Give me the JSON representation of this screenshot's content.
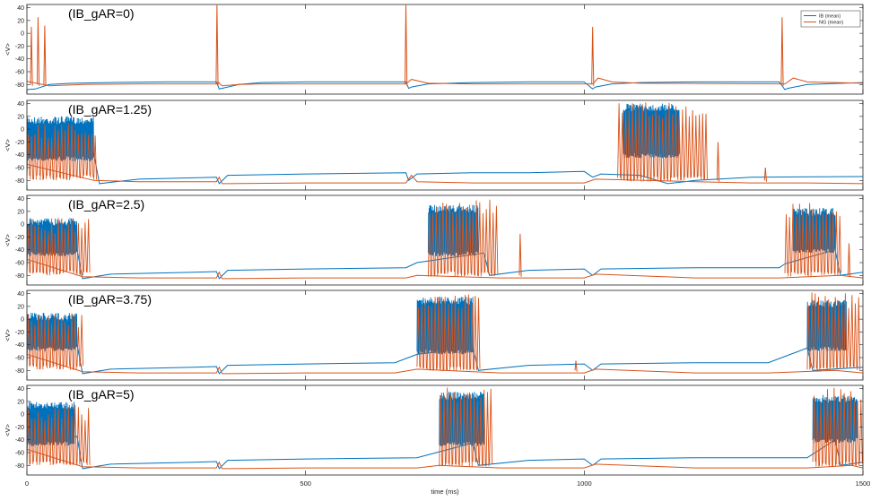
{
  "chart_data": {
    "type": "line",
    "xlabel": "time (ms)",
    "x_ticks": [
      0,
      500,
      1000,
      1500
    ],
    "xlim": [
      0,
      1500
    ],
    "ylim": [
      -95,
      45
    ],
    "y_ticks": [
      -80,
      -60,
      -40,
      -20,
      0,
      20,
      40
    ],
    "ylabel": "<V>",
    "legend": {
      "placement": "top-right",
      "entries": [
        {
          "name": "IB (mean)",
          "color": "#0072BD"
        },
        {
          "name": "NG (mean)",
          "color": "#D95319"
        }
      ]
    },
    "panels": [
      {
        "label": "(IB_gAR=0)",
        "series": [
          {
            "name": "IB (mean)",
            "color": "#0072BD",
            "x": [
              0,
              15,
              40,
              80,
              150,
              250,
              340,
              345,
              355,
              380,
              420,
              500,
              600,
              680,
              685,
              690,
              720,
              800,
              900,
              1000,
              1015,
              1020,
              1050,
              1100,
              1200,
              1350,
              1360,
              1365,
              1400,
              1500
            ],
            "y": [
              -88,
              -87,
              -80,
              -78,
              -77,
              -76,
              -76,
              -87,
              -85,
              -80,
              -77,
              -76,
              -76,
              -76,
              -86,
              -84,
              -79,
              -77,
              -76,
              -76,
              -87,
              -84,
              -79,
              -77,
              -76,
              -76,
              -88,
              -86,
              -80,
              -77
            ]
          },
          {
            "name": "NG (mean)",
            "color": "#D95319",
            "x": [
              0,
              40,
              100,
              200,
              340,
              343,
              350,
              380,
              420,
              500,
              680,
              690,
              720,
              800,
              1015,
              1025,
              1050,
              1100,
              1360,
              1375,
              1400,
              1500
            ],
            "y": [
              -75,
              -82,
              -80,
              -79,
              -79,
              -76,
              -82,
              -80,
              -79,
              -79,
              -79,
              -72,
              -78,
              -79,
              -79,
              -70,
              -76,
              -78,
              -79,
              -70,
              -76,
              -78
            ]
          }
        ],
        "spikes_ng": [
          {
            "x": 8,
            "peak": 10
          },
          {
            "x": 20,
            "peak": 25
          },
          {
            "x": 32,
            "peak": 12
          },
          {
            "x": 341,
            "peak": 44
          },
          {
            "x": 680,
            "peak": 44
          },
          {
            "x": 1015,
            "peak": 10
          },
          {
            "x": 1355,
            "peak": 25
          }
        ],
        "bursts_ib": [],
        "bursts_ng": []
      },
      {
        "label": "(IB_gAR=1.25)",
        "series": [
          {
            "name": "IB (mean)",
            "color": "#0072BD",
            "x": [
              0,
              120,
              130,
              200,
              340,
              345,
              360,
              500,
              680,
              685,
              700,
              800,
              900,
              1000,
              1015,
              1030,
              1100,
              1150,
              1200,
              1300,
              1500
            ],
            "y": [
              -35,
              -38,
              -85,
              -78,
              -75,
              -85,
              -72,
              -70,
              -68,
              -80,
              -70,
              -68,
              -68,
              -66,
              -75,
              -70,
              -72,
              -85,
              -80,
              -75,
              -74
            ]
          },
          {
            "name": "NG (mean)",
            "color": "#D95319",
            "x": [
              0,
              120,
              200,
              340,
              345,
              350,
              500,
              680,
              690,
              700,
              800,
              1000,
              1020,
              1200,
              1300,
              1400,
              1500
            ],
            "y": [
              -55,
              -80,
              -82,
              -82,
              -75,
              -85,
              -84,
              -84,
              -72,
              -82,
              -84,
              -84,
              -78,
              -82,
              -84,
              -84,
              -85
            ]
          }
        ],
        "bursts_ib": [
          {
            "start": 0,
            "end": 120,
            "high": 20,
            "low": -50
          },
          {
            "start": 1070,
            "end": 1170,
            "high": 40,
            "low": -45
          }
        ],
        "bursts_ng": [
          {
            "start": 0,
            "end": 120,
            "high": 10,
            "low": -80
          },
          {
            "start": 1060,
            "end": 1220,
            "high": 42,
            "low": -82
          }
        ],
        "spikes_ng": [
          {
            "x": 1240,
            "peak": -20
          },
          {
            "x": 1325,
            "peak": -60
          }
        ]
      },
      {
        "label": "(IB_gAR=2.5)",
        "series": [
          {
            "name": "IB (mean)",
            "color": "#0072BD",
            "x": [
              0,
              90,
              100,
              150,
              300,
              340,
              345,
              360,
              500,
              680,
              700,
              820,
              830,
              900,
              1000,
              1015,
              1030,
              1200,
              1350,
              1360,
              1450,
              1460,
              1500
            ],
            "y": [
              -30,
              -40,
              -85,
              -78,
              -75,
              -74,
              -85,
              -72,
              -70,
              -68,
              -60,
              -45,
              -80,
              -72,
              -70,
              -80,
              -70,
              -68,
              -68,
              -62,
              -40,
              -80,
              -75
            ]
          },
          {
            "name": "NG (mean)",
            "color": "#D95319",
            "x": [
              0,
              100,
              200,
              340,
              345,
              350,
              500,
              680,
              700,
              850,
              1000,
              1020,
              1200,
              1350,
              1460,
              1500
            ],
            "y": [
              -55,
              -82,
              -84,
              -84,
              -75,
              -85,
              -84,
              -84,
              -80,
              -84,
              -84,
              -78,
              -84,
              -84,
              -80,
              -84
            ]
          }
        ],
        "bursts_ib": [
          {
            "start": 0,
            "end": 90,
            "high": 10,
            "low": -50
          },
          {
            "start": 720,
            "end": 810,
            "high": 30,
            "low": -50
          },
          {
            "start": 1375,
            "end": 1450,
            "high": 25,
            "low": -45
          }
        ],
        "bursts_ng": [
          {
            "start": 0,
            "end": 110,
            "high": 10,
            "low": -80
          },
          {
            "start": 720,
            "end": 840,
            "high": 40,
            "low": -82
          },
          {
            "start": 1360,
            "end": 1460,
            "high": 35,
            "low": -82
          }
        ],
        "spikes_ng": [
          {
            "x": 885,
            "peak": -15
          },
          {
            "x": 1475,
            "peak": -30
          }
        ]
      },
      {
        "label": "(IB_gAR=3.75)",
        "series": [
          {
            "name": "IB (mean)",
            "color": "#0072BD",
            "x": [
              0,
              90,
              100,
              150,
              300,
              340,
              345,
              360,
              500,
              660,
              700,
              800,
              810,
              900,
              1000,
              1015,
              1030,
              1200,
              1330,
              1400,
              1410,
              1500
            ],
            "y": [
              -30,
              -40,
              -85,
              -78,
              -75,
              -74,
              -85,
              -72,
              -70,
              -68,
              -55,
              -45,
              -80,
              -72,
              -70,
              -80,
              -70,
              -68,
              -68,
              -45,
              -80,
              -75
            ]
          },
          {
            "name": "NG (mean)",
            "color": "#D95319",
            "x": [
              0,
              100,
              200,
              340,
              345,
              350,
              500,
              660,
              700,
              850,
              1000,
              1020,
              1200,
              1330,
              1450,
              1500
            ],
            "y": [
              -55,
              -82,
              -84,
              -84,
              -75,
              -85,
              -84,
              -84,
              -78,
              -84,
              -84,
              -78,
              -84,
              -84,
              -80,
              -84
            ]
          }
        ],
        "bursts_ib": [
          {
            "start": 0,
            "end": 90,
            "high": 10,
            "low": -50
          },
          {
            "start": 700,
            "end": 800,
            "high": 35,
            "low": -55
          },
          {
            "start": 1400,
            "end": 1470,
            "high": 30,
            "low": -50
          }
        ],
        "bursts_ng": [
          {
            "start": 0,
            "end": 100,
            "high": 10,
            "low": -80
          },
          {
            "start": 700,
            "end": 810,
            "high": 42,
            "low": -82
          },
          {
            "start": 1400,
            "end": 1490,
            "high": 42,
            "low": -82
          }
        ],
        "spikes_ng": [
          {
            "x": 985,
            "peak": -65
          }
        ]
      },
      {
        "label": "(IB_gAR=5)",
        "series": [
          {
            "name": "IB (mean)",
            "color": "#0072BD",
            "x": [
              0,
              90,
              100,
              150,
              300,
              340,
              345,
              360,
              500,
              700,
              800,
              810,
              900,
              1000,
              1015,
              1030,
              1200,
              1400,
              1450,
              1460,
              1500
            ],
            "y": [
              -25,
              -35,
              -85,
              -78,
              -75,
              -74,
              -85,
              -72,
              -70,
              -68,
              -45,
              -80,
              -72,
              -70,
              -80,
              -70,
              -68,
              -68,
              -40,
              -80,
              -75
            ]
          },
          {
            "name": "NG (mean)",
            "color": "#D95319",
            "x": [
              0,
              100,
              200,
              340,
              345,
              350,
              500,
              700,
              740,
              850,
              1000,
              1020,
              1200,
              1400,
              1480,
              1500
            ],
            "y": [
              -55,
              -82,
              -84,
              -84,
              -75,
              -85,
              -84,
              -84,
              -80,
              -84,
              -84,
              -78,
              -84,
              -84,
              -80,
              -84
            ]
          }
        ],
        "bursts_ib": [
          {
            "start": 0,
            "end": 85,
            "high": 20,
            "low": -50
          },
          {
            "start": 740,
            "end": 820,
            "high": 35,
            "low": -50
          },
          {
            "start": 1410,
            "end": 1490,
            "high": 30,
            "low": -45
          }
        ],
        "bursts_ng": [
          {
            "start": 0,
            "end": 110,
            "high": 15,
            "low": -80
          },
          {
            "start": 740,
            "end": 830,
            "high": 42,
            "low": -82
          },
          {
            "start": 1410,
            "end": 1500,
            "high": 42,
            "low": -82
          }
        ],
        "spikes_ng": []
      }
    ]
  }
}
